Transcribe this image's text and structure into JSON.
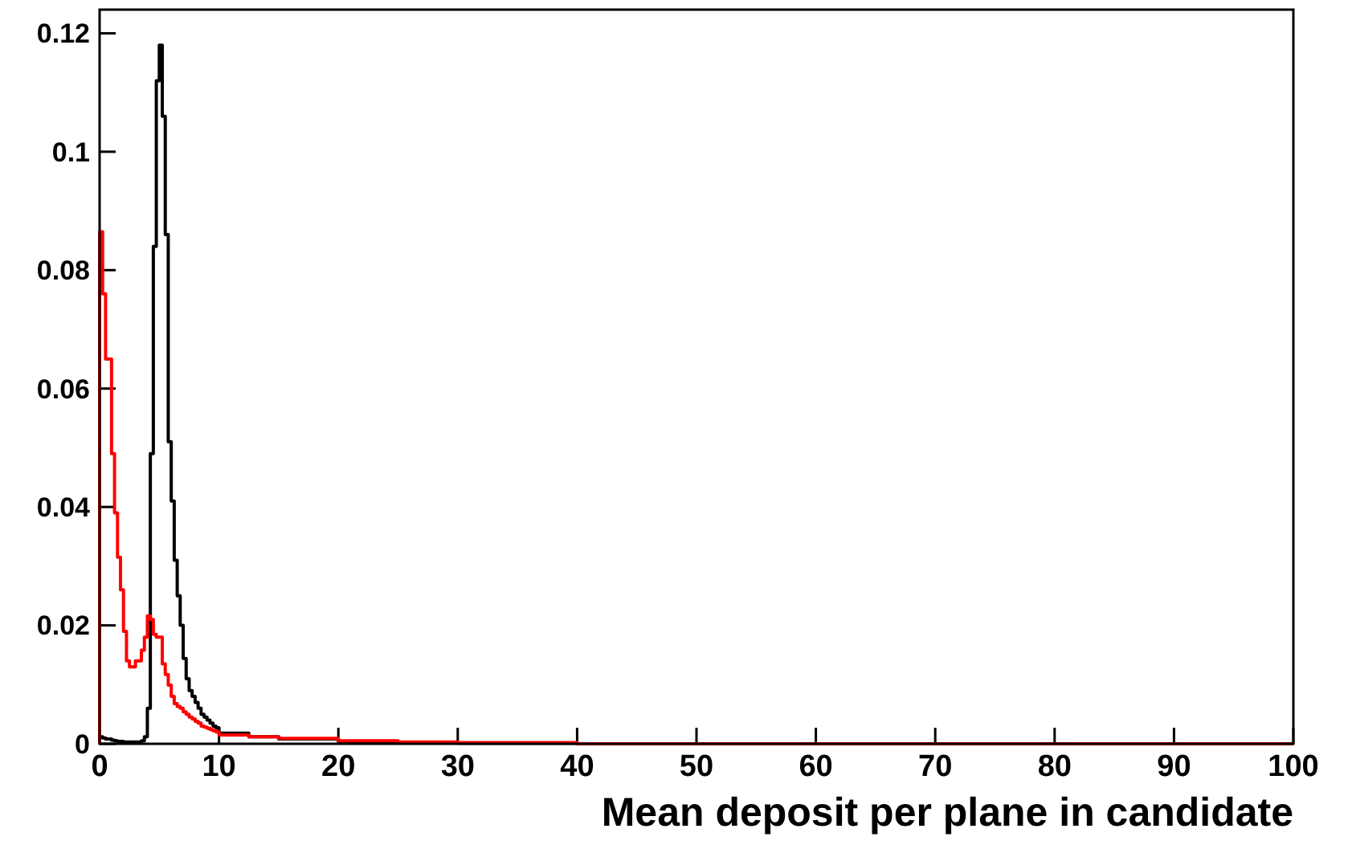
{
  "chart_data": {
    "type": "histogram",
    "xlabel": "Mean deposit per plane in candidate",
    "bins": [
      0,
      0.25,
      0.5,
      0.75,
      1,
      1.25,
      1.5,
      1.75,
      2,
      2.25,
      2.5,
      2.75,
      3,
      3.25,
      3.5,
      3.75,
      4,
      4.25,
      4.5,
      4.75,
      5,
      5.25,
      5.5,
      5.75,
      6,
      6.25,
      6.5,
      6.75,
      7,
      7.25,
      7.5,
      7.75,
      8,
      8.25,
      8.5,
      8.75,
      9,
      9.25,
      9.5,
      9.75,
      10,
      12.5,
      15,
      20,
      25,
      30,
      40,
      50,
      60,
      70,
      80,
      90,
      100
    ],
    "series": [
      {
        "color": "#000000",
        "values": [
          0.0012,
          0.001,
          0.0008,
          0.0008,
          0.0006,
          0.0005,
          0.0004,
          0.0004,
          0.0003,
          0.0003,
          0.0003,
          0.0003,
          0.0003,
          0.0003,
          0.0005,
          0.0012,
          0.006,
          0.049,
          0.084,
          0.112,
          0.118,
          0.106,
          0.086,
          0.051,
          0.041,
          0.031,
          0.025,
          0.02,
          0.0144,
          0.011,
          0.009,
          0.008,
          0.007,
          0.006,
          0.005,
          0.0045,
          0.004,
          0.0035,
          0.003,
          0.0027,
          0.0018,
          0.0012,
          0.0008,
          0.0004,
          0.0002,
          0.0001,
          0,
          0,
          0,
          0,
          0,
          0
        ]
      },
      {
        "color": "#ff0000",
        "values": [
          0.0865,
          0.076,
          0.065,
          0.065,
          0.049,
          0.039,
          0.0315,
          0.026,
          0.019,
          0.014,
          0.013,
          0.013,
          0.014,
          0.014,
          0.0158,
          0.018,
          0.0216,
          0.021,
          0.0185,
          0.018,
          0.018,
          0.0135,
          0.0117,
          0.0099,
          0.008,
          0.0068,
          0.0063,
          0.006,
          0.0054,
          0.005,
          0.0045,
          0.0042,
          0.0038,
          0.0035,
          0.003,
          0.0028,
          0.0026,
          0.0024,
          0.0022,
          0.002,
          0.0015,
          0.0012,
          0.0009,
          0.0005,
          0.0003,
          0.0002,
          0,
          0,
          0,
          0,
          0,
          0
        ]
      }
    ],
    "xlim": [
      0,
      100
    ],
    "xticks": [
      0,
      10,
      20,
      30,
      40,
      50,
      60,
      70,
      80,
      90,
      100
    ],
    "ylim": [
      0,
      0.124
    ],
    "yticks": [
      0,
      0.02,
      0.04,
      0.06,
      0.08,
      0.1,
      0.12
    ],
    "grid": false
  }
}
